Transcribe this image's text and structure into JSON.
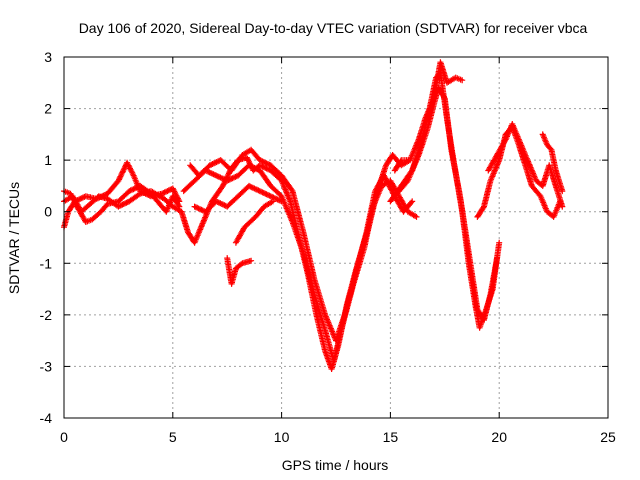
{
  "chart_data": {
    "type": "scatter",
    "title": "Day 106 of 2020, Sidereal Day-to-day VTEC variation (SDTVAR) for receiver vbca",
    "xlabel": "GPS time / hours",
    "ylabel": "SDTVAR / TECUs",
    "xlim": [
      0,
      25
    ],
    "ylim": [
      -4,
      3
    ],
    "xticks": [
      0,
      5,
      10,
      15,
      20,
      25
    ],
    "yticks": [
      -4,
      -3,
      -2,
      -1,
      0,
      1,
      2,
      3
    ],
    "grid": true,
    "marker": "+",
    "series": [
      {
        "name": "SDTVAR",
        "color": "#ff0000",
        "segments": [
          [
            [
              0.0,
              -0.3
            ],
            [
              0.2,
              0.0
            ],
            [
              0.5,
              0.2
            ],
            [
              1.0,
              0.3
            ],
            [
              1.5,
              0.25
            ],
            [
              2.0,
              0.35
            ],
            [
              2.5,
              0.6
            ],
            [
              2.9,
              0.95
            ],
            [
              3.2,
              0.7
            ],
            [
              3.5,
              0.4
            ],
            [
              4.0,
              0.3
            ],
            [
              4.5,
              0.35
            ],
            [
              5.0,
              0.45
            ],
            [
              5.3,
              0.2
            ]
          ],
          [
            [
              0.0,
              0.4
            ],
            [
              0.3,
              0.35
            ],
            [
              0.6,
              0.1
            ],
            [
              1.0,
              -0.2
            ],
            [
              1.3,
              -0.15
            ],
            [
              1.7,
              0.0
            ],
            [
              2.0,
              0.15
            ],
            [
              2.5,
              0.2
            ],
            [
              3.0,
              0.4
            ],
            [
              3.5,
              0.5
            ],
            [
              4.0,
              0.35
            ],
            [
              4.3,
              0.2
            ],
            [
              4.7,
              0.0
            ],
            [
              5.0,
              0.3
            ],
            [
              5.3,
              0.1
            ]
          ],
          [
            [
              0.0,
              0.2
            ],
            [
              0.4,
              0.3
            ],
            [
              0.8,
              0.0
            ],
            [
              1.2,
              0.15
            ],
            [
              1.6,
              0.3
            ],
            [
              2.0,
              0.25
            ],
            [
              2.5,
              0.1
            ],
            [
              3.0,
              0.2
            ],
            [
              3.5,
              0.35
            ],
            [
              4.0,
              0.4
            ],
            [
              4.6,
              0.25
            ],
            [
              5.0,
              0.1
            ],
            [
              5.4,
              0.0
            ]
          ],
          [
            [
              5.4,
              0.0
            ],
            [
              5.7,
              -0.4
            ],
            [
              6.0,
              -0.6
            ],
            [
              6.4,
              -0.2
            ],
            [
              6.8,
              0.2
            ],
            [
              7.3,
              0.5
            ],
            [
              7.7,
              0.85
            ],
            [
              8.0,
              1.0
            ],
            [
              8.4,
              1.05
            ],
            [
              8.7,
              0.8
            ],
            [
              9.0,
              0.9
            ],
            [
              9.5,
              0.8
            ],
            [
              10.0,
              0.6
            ],
            [
              10.4,
              0.2
            ],
            [
              10.8,
              -0.5
            ],
            [
              11.2,
              -1.2
            ],
            [
              11.6,
              -2.0
            ],
            [
              12.0,
              -2.7
            ],
            [
              12.3,
              -3.05
            ],
            [
              12.6,
              -2.6
            ],
            [
              13.0,
              -1.8
            ],
            [
              13.5,
              -1.0
            ],
            [
              14.0,
              -0.3
            ],
            [
              14.4,
              0.4
            ],
            [
              14.8,
              0.9
            ],
            [
              15.1,
              1.1
            ],
            [
              15.5,
              0.9
            ],
            [
              15.9,
              1.0
            ]
          ],
          [
            [
              5.5,
              0.4
            ],
            [
              6.0,
              0.6
            ],
            [
              6.5,
              0.8
            ],
            [
              7.0,
              0.7
            ],
            [
              7.5,
              0.6
            ],
            [
              8.0,
              0.7
            ],
            [
              8.5,
              0.9
            ],
            [
              9.0,
              0.8
            ],
            [
              9.5,
              0.5
            ],
            [
              10.0,
              0.3
            ],
            [
              10.5,
              -0.2
            ],
            [
              11.0,
              -0.8
            ],
            [
              11.5,
              -1.6
            ],
            [
              12.0,
              -2.3
            ],
            [
              12.4,
              -2.9
            ],
            [
              12.8,
              -2.2
            ],
            [
              13.3,
              -1.4
            ],
            [
              13.8,
              -0.7
            ],
            [
              14.2,
              0.1
            ],
            [
              14.6,
              0.5
            ],
            [
              15.0,
              0.6
            ],
            [
              15.4,
              0.3
            ],
            [
              15.8,
              0.0
            ],
            [
              16.2,
              -0.1
            ]
          ],
          [
            [
              5.8,
              0.9
            ],
            [
              6.2,
              0.7
            ],
            [
              6.7,
              0.9
            ],
            [
              7.2,
              1.0
            ],
            [
              7.7,
              0.8
            ],
            [
              8.2,
              1.1
            ],
            [
              8.6,
              1.2
            ],
            [
              9.0,
              1.0
            ],
            [
              9.5,
              0.9
            ],
            [
              10.0,
              0.7
            ],
            [
              10.5,
              0.4
            ],
            [
              11.0,
              -0.4
            ],
            [
              11.5,
              -1.3
            ],
            [
              12.0,
              -2.0
            ],
            [
              12.5,
              -2.5
            ],
            [
              12.9,
              -2.0
            ],
            [
              13.4,
              -1.2
            ],
            [
              13.9,
              -0.4
            ],
            [
              14.3,
              0.4
            ],
            [
              14.7,
              0.7
            ],
            [
              15.2,
              0.3
            ],
            [
              15.6,
              0.0
            ],
            [
              16.0,
              0.2
            ]
          ],
          [
            [
              6.0,
              0.1
            ],
            [
              6.5,
              0.0
            ],
            [
              7.0,
              0.2
            ],
            [
              7.5,
              0.1
            ],
            [
              8.0,
              0.3
            ],
            [
              8.5,
              0.5
            ],
            [
              9.0,
              0.4
            ],
            [
              9.5,
              0.3
            ],
            [
              10.0,
              0.2
            ]
          ],
          [
            [
              7.5,
              -0.9
            ],
            [
              7.7,
              -1.4
            ],
            [
              7.9,
              -1.1
            ],
            [
              8.2,
              -1.0
            ],
            [
              8.6,
              -0.95
            ]
          ],
          [
            [
              7.9,
              -0.6
            ],
            [
              8.3,
              -0.3
            ],
            [
              8.8,
              -0.1
            ],
            [
              9.2,
              0.1
            ],
            [
              9.6,
              0.2
            ]
          ],
          [
            [
              15.2,
              0.8
            ],
            [
              15.5,
              1.0
            ],
            [
              15.9,
              1.0
            ],
            [
              16.3,
              1.4
            ],
            [
              16.6,
              1.8
            ],
            [
              17.0,
              2.2
            ],
            [
              17.3,
              2.9
            ],
            [
              17.6,
              2.5
            ],
            [
              18.0,
              2.6
            ],
            [
              18.3,
              2.55
            ]
          ],
          [
            [
              15.0,
              0.2
            ],
            [
              15.5,
              0.5
            ],
            [
              16.0,
              0.8
            ],
            [
              16.4,
              1.3
            ],
            [
              16.8,
              2.0
            ],
            [
              17.1,
              2.6
            ],
            [
              17.3,
              2.7
            ],
            [
              17.6,
              1.8
            ],
            [
              17.9,
              1.0
            ],
            [
              18.3,
              0.0
            ],
            [
              18.6,
              -1.0
            ],
            [
              18.9,
              -1.8
            ],
            [
              19.1,
              -2.25
            ],
            [
              19.4,
              -1.9
            ],
            [
              19.7,
              -1.5
            ],
            [
              20.0,
              -0.6
            ]
          ],
          [
            [
              15.4,
              0.4
            ],
            [
              15.8,
              0.6
            ],
            [
              16.3,
              1.1
            ],
            [
              16.7,
              1.6
            ],
            [
              17.2,
              2.4
            ],
            [
              17.5,
              2.2
            ],
            [
              17.8,
              1.2
            ],
            [
              18.2,
              0.3
            ],
            [
              18.6,
              -0.8
            ],
            [
              19.0,
              -1.9
            ],
            [
              19.3,
              -2.1
            ],
            [
              19.6,
              -1.6
            ],
            [
              19.9,
              -0.9
            ]
          ],
          [
            [
              19.0,
              -0.1
            ],
            [
              19.3,
              0.1
            ],
            [
              19.6,
              0.6
            ],
            [
              20.0,
              1.0
            ],
            [
              20.3,
              1.5
            ],
            [
              20.6,
              1.65
            ],
            [
              20.9,
              1.3
            ],
            [
              21.2,
              0.9
            ],
            [
              21.5,
              0.5
            ],
            [
              21.9,
              0.3
            ],
            [
              22.2,
              0.0
            ],
            [
              22.5,
              -0.1
            ],
            [
              22.8,
              0.2
            ]
          ],
          [
            [
              19.5,
              0.8
            ],
            [
              19.9,
              1.1
            ],
            [
              20.3,
              1.4
            ],
            [
              20.6,
              1.7
            ],
            [
              20.9,
              1.4
            ],
            [
              21.3,
              1.0
            ],
            [
              21.7,
              0.6
            ],
            [
              22.0,
              0.5
            ],
            [
              22.3,
              0.9
            ],
            [
              22.6,
              0.5
            ],
            [
              22.9,
              0.1
            ]
          ],
          [
            [
              22.0,
              1.5
            ],
            [
              22.2,
              1.3
            ],
            [
              22.4,
              1.2
            ],
            [
              22.6,
              0.8
            ],
            [
              22.9,
              0.4
            ]
          ]
        ]
      }
    ]
  }
}
